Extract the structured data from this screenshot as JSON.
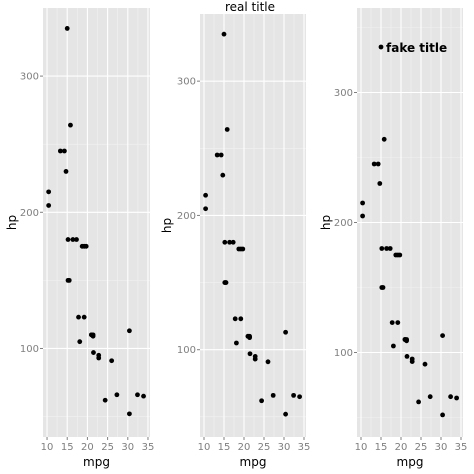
{
  "figure": {
    "title": "real title"
  },
  "chart_data": [
    {
      "type": "scatter",
      "xlabel": "mpg",
      "ylabel": "hp",
      "xlim": [
        9.0,
        35.5
      ],
      "ylim": [
        35,
        350
      ],
      "xticks": [
        10,
        15,
        20,
        25,
        30,
        35
      ],
      "yticks": [
        100,
        200,
        300
      ],
      "grid": true,
      "annotation": null,
      "points": [
        {
          "x": 10.4,
          "y": 205
        },
        {
          "x": 10.4,
          "y": 215
        },
        {
          "x": 14.7,
          "y": 230
        },
        {
          "x": 14.3,
          "y": 245
        },
        {
          "x": 13.3,
          "y": 245
        },
        {
          "x": 15.0,
          "y": 335
        },
        {
          "x": 15.8,
          "y": 264
        },
        {
          "x": 15.2,
          "y": 180
        },
        {
          "x": 16.4,
          "y": 180
        },
        {
          "x": 17.3,
          "y": 180
        },
        {
          "x": 19.2,
          "y": 175
        },
        {
          "x": 18.7,
          "y": 175
        },
        {
          "x": 19.7,
          "y": 175
        },
        {
          "x": 15.2,
          "y": 150
        },
        {
          "x": 15.5,
          "y": 150
        },
        {
          "x": 17.8,
          "y": 123
        },
        {
          "x": 19.2,
          "y": 123
        },
        {
          "x": 18.1,
          "y": 105
        },
        {
          "x": 21.0,
          "y": 110
        },
        {
          "x": 21.0,
          "y": 110
        },
        {
          "x": 21.4,
          "y": 110
        },
        {
          "x": 30.4,
          "y": 113
        },
        {
          "x": 21.4,
          "y": 109
        },
        {
          "x": 21.5,
          "y": 97
        },
        {
          "x": 22.8,
          "y": 95
        },
        {
          "x": 22.8,
          "y": 93
        },
        {
          "x": 26.0,
          "y": 91
        },
        {
          "x": 27.3,
          "y": 66
        },
        {
          "x": 32.4,
          "y": 66
        },
        {
          "x": 33.9,
          "y": 65
        },
        {
          "x": 24.4,
          "y": 62
        },
        {
          "x": 30.4,
          "y": 52
        }
      ]
    },
    {
      "type": "scatter",
      "xlabel": "mpg",
      "ylabel": "hp",
      "xlim": [
        9.0,
        35.5
      ],
      "ylim": [
        35,
        350
      ],
      "xticks": [
        10,
        15,
        20,
        25,
        30,
        35
      ],
      "yticks": [
        100,
        200,
        300
      ],
      "grid": true,
      "annotation": null,
      "points": [
        {
          "x": 10.4,
          "y": 205
        },
        {
          "x": 10.4,
          "y": 215
        },
        {
          "x": 14.7,
          "y": 230
        },
        {
          "x": 14.3,
          "y": 245
        },
        {
          "x": 13.3,
          "y": 245
        },
        {
          "x": 15.0,
          "y": 335
        },
        {
          "x": 15.8,
          "y": 264
        },
        {
          "x": 15.2,
          "y": 180
        },
        {
          "x": 16.4,
          "y": 180
        },
        {
          "x": 17.3,
          "y": 180
        },
        {
          "x": 19.2,
          "y": 175
        },
        {
          "x": 18.7,
          "y": 175
        },
        {
          "x": 19.7,
          "y": 175
        },
        {
          "x": 15.2,
          "y": 150
        },
        {
          "x": 15.5,
          "y": 150
        },
        {
          "x": 17.8,
          "y": 123
        },
        {
          "x": 19.2,
          "y": 123
        },
        {
          "x": 18.1,
          "y": 105
        },
        {
          "x": 21.0,
          "y": 110
        },
        {
          "x": 21.0,
          "y": 110
        },
        {
          "x": 21.4,
          "y": 110
        },
        {
          "x": 30.4,
          "y": 113
        },
        {
          "x": 21.4,
          "y": 109
        },
        {
          "x": 21.5,
          "y": 97
        },
        {
          "x": 22.8,
          "y": 95
        },
        {
          "x": 22.8,
          "y": 93
        },
        {
          "x": 26.0,
          "y": 91
        },
        {
          "x": 27.3,
          "y": 66
        },
        {
          "x": 32.4,
          "y": 66
        },
        {
          "x": 33.9,
          "y": 65
        },
        {
          "x": 24.4,
          "y": 62
        },
        {
          "x": 30.4,
          "y": 52
        }
      ]
    },
    {
      "type": "scatter",
      "xlabel": "mpg",
      "ylabel": "hp",
      "xlim": [
        9.0,
        35.5
      ],
      "ylim": [
        35,
        365
      ],
      "xticks": [
        10,
        15,
        20,
        25,
        30,
        35
      ],
      "yticks": [
        100,
        200,
        300
      ],
      "grid": true,
      "annotation": {
        "text": "fake title",
        "x": 15.0,
        "y": 335
      },
      "points": [
        {
          "x": 10.4,
          "y": 205
        },
        {
          "x": 10.4,
          "y": 215
        },
        {
          "x": 14.7,
          "y": 230
        },
        {
          "x": 14.3,
          "y": 245
        },
        {
          "x": 13.3,
          "y": 245
        },
        {
          "x": 15.0,
          "y": 335
        },
        {
          "x": 15.8,
          "y": 264
        },
        {
          "x": 15.2,
          "y": 180
        },
        {
          "x": 16.4,
          "y": 180
        },
        {
          "x": 17.3,
          "y": 180
        },
        {
          "x": 19.2,
          "y": 175
        },
        {
          "x": 18.7,
          "y": 175
        },
        {
          "x": 19.7,
          "y": 175
        },
        {
          "x": 15.2,
          "y": 150
        },
        {
          "x": 15.5,
          "y": 150
        },
        {
          "x": 17.8,
          "y": 123
        },
        {
          "x": 19.2,
          "y": 123
        },
        {
          "x": 18.1,
          "y": 105
        },
        {
          "x": 21.0,
          "y": 110
        },
        {
          "x": 21.0,
          "y": 110
        },
        {
          "x": 21.4,
          "y": 110
        },
        {
          "x": 30.4,
          "y": 113
        },
        {
          "x": 21.4,
          "y": 109
        },
        {
          "x": 21.5,
          "y": 97
        },
        {
          "x": 22.8,
          "y": 95
        },
        {
          "x": 22.8,
          "y": 93
        },
        {
          "x": 26.0,
          "y": 91
        },
        {
          "x": 27.3,
          "y": 66
        },
        {
          "x": 32.4,
          "y": 66
        },
        {
          "x": 33.9,
          "y": 65
        },
        {
          "x": 24.4,
          "y": 62
        },
        {
          "x": 30.4,
          "y": 52
        }
      ]
    }
  ]
}
